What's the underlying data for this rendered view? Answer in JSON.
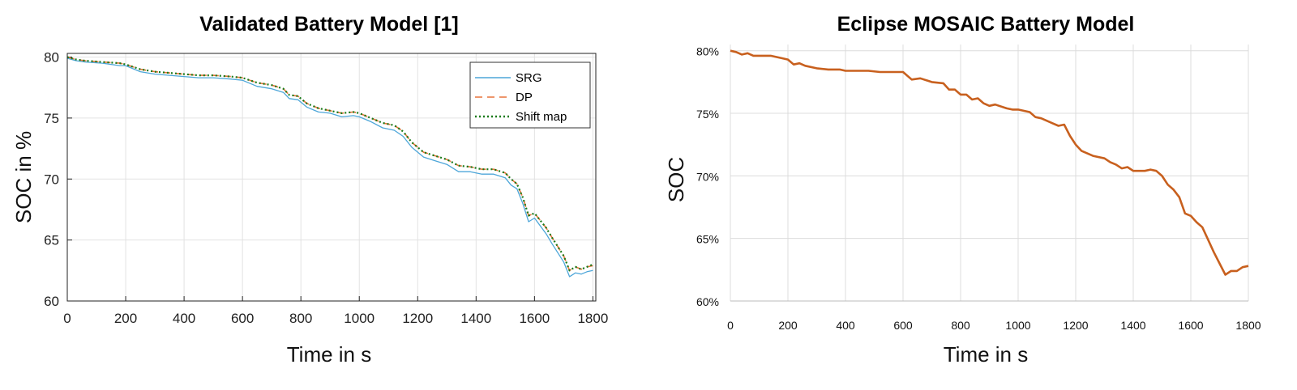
{
  "chart_data": [
    {
      "type": "line",
      "title": "Validated Battery Model [1]",
      "xlabel": "Time in s",
      "ylabel": "SOC in %",
      "xlim": [
        0,
        1810
      ],
      "ylim": [
        60,
        80.3
      ],
      "xticks": [
        0,
        200,
        400,
        600,
        800,
        1000,
        1200,
        1400,
        1600,
        1800
      ],
      "xtick_labels": [
        "0",
        "200",
        "400",
        "600",
        "800",
        "1000",
        "1200",
        "1400",
        "1600",
        "1800"
      ],
      "yticks": [
        60,
        65,
        70,
        75,
        80
      ],
      "ytick_labels": [
        "60",
        "65",
        "70",
        "75",
        "80"
      ],
      "grid": true,
      "legend_position": "top-right",
      "series": [
        {
          "name": "SRG",
          "color": "#4da6d9",
          "style": "solid",
          "x": [
            0,
            30,
            60,
            120,
            180,
            200,
            250,
            300,
            350,
            400,
            450,
            500,
            560,
            600,
            650,
            700,
            740,
            760,
            790,
            820,
            860,
            900,
            940,
            980,
            1000,
            1040,
            1080,
            1120,
            1150,
            1180,
            1220,
            1260,
            1300,
            1340,
            1380,
            1420,
            1460,
            1500,
            1520,
            1540,
            1560,
            1580,
            1600,
            1640,
            1660,
            1700,
            1720,
            1740,
            1760,
            1780,
            1800
          ],
          "y": [
            79.9,
            79.7,
            79.6,
            79.5,
            79.3,
            79.3,
            78.8,
            78.6,
            78.5,
            78.4,
            78.3,
            78.3,
            78.2,
            78.1,
            77.6,
            77.4,
            77.1,
            76.6,
            76.5,
            75.9,
            75.5,
            75.4,
            75.1,
            75.2,
            75.1,
            74.7,
            74.2,
            74.0,
            73.5,
            72.6,
            71.8,
            71.5,
            71.2,
            70.6,
            70.6,
            70.4,
            70.4,
            70.1,
            69.5,
            69.2,
            68.0,
            66.5,
            66.8,
            65.5,
            64.7,
            63.2,
            62.0,
            62.3,
            62.2,
            62.4,
            62.5
          ]
        },
        {
          "name": "DP",
          "color": "#e8743b",
          "style": "dashed",
          "x": [
            0,
            30,
            60,
            120,
            180,
            200,
            250,
            300,
            350,
            400,
            450,
            500,
            560,
            600,
            650,
            700,
            740,
            760,
            790,
            820,
            860,
            900,
            940,
            980,
            1000,
            1040,
            1080,
            1120,
            1150,
            1180,
            1220,
            1260,
            1300,
            1340,
            1380,
            1420,
            1460,
            1500,
            1520,
            1540,
            1560,
            1580,
            1600,
            1640,
            1660,
            1700,
            1720,
            1740,
            1760,
            1780,
            1800
          ],
          "y": [
            80.0,
            79.8,
            79.7,
            79.6,
            79.5,
            79.4,
            79.0,
            78.8,
            78.7,
            78.6,
            78.5,
            78.5,
            78.4,
            78.3,
            77.9,
            77.7,
            77.4,
            76.9,
            76.8,
            76.2,
            75.8,
            75.6,
            75.4,
            75.5,
            75.4,
            75.0,
            74.6,
            74.4,
            73.9,
            73.0,
            72.2,
            71.9,
            71.6,
            71.1,
            71.0,
            70.8,
            70.8,
            70.5,
            70.0,
            69.6,
            68.5,
            67.0,
            67.2,
            66.0,
            65.2,
            63.7,
            62.5,
            62.8,
            62.6,
            62.8,
            62.9
          ]
        },
        {
          "name": "Shift map",
          "color": "#1a7a1a",
          "style": "dotted",
          "x": [
            0,
            30,
            60,
            120,
            180,
            200,
            250,
            300,
            350,
            400,
            450,
            500,
            560,
            600,
            650,
            700,
            740,
            760,
            790,
            820,
            860,
            900,
            940,
            980,
            1000,
            1040,
            1080,
            1120,
            1150,
            1180,
            1220,
            1260,
            1300,
            1340,
            1380,
            1420,
            1460,
            1500,
            1520,
            1540,
            1560,
            1580,
            1600,
            1640,
            1660,
            1700,
            1720,
            1740,
            1760,
            1780,
            1800
          ],
          "y": [
            80.0,
            79.8,
            79.7,
            79.6,
            79.5,
            79.4,
            79.0,
            78.8,
            78.7,
            78.6,
            78.5,
            78.5,
            78.4,
            78.3,
            77.9,
            77.7,
            77.4,
            76.9,
            76.8,
            76.2,
            75.8,
            75.6,
            75.4,
            75.5,
            75.4,
            75.0,
            74.6,
            74.4,
            73.9,
            73.0,
            72.2,
            71.9,
            71.6,
            71.1,
            71.0,
            70.8,
            70.8,
            70.5,
            70.0,
            69.6,
            68.5,
            67.0,
            67.2,
            66.0,
            65.2,
            63.7,
            62.5,
            62.8,
            62.6,
            62.8,
            63.0
          ]
        }
      ]
    },
    {
      "type": "line",
      "title": "Eclipse MOSAIC Battery Model",
      "xlabel": "Time in s",
      "ylabel": "SOC",
      "xlim": [
        0,
        1800
      ],
      "ylim": [
        60,
        80.5
      ],
      "xticks": [
        0,
        200,
        400,
        600,
        800,
        1000,
        1200,
        1400,
        1600,
        1800
      ],
      "xtick_labels": [
        "0",
        "200",
        "400",
        "600",
        "800",
        "1000",
        "1200",
        "1400",
        "1600",
        "1800"
      ],
      "yticks": [
        60,
        65,
        70,
        75,
        80
      ],
      "ytick_labels": [
        "60%",
        "65%",
        "70%",
        "75%",
        "80%"
      ],
      "grid": true,
      "series": [
        {
          "color": "#c8601e",
          "style": "solid",
          "x": [
            0,
            20,
            40,
            60,
            80,
            100,
            140,
            180,
            200,
            220,
            240,
            260,
            300,
            340,
            380,
            400,
            440,
            480,
            520,
            560,
            600,
            630,
            660,
            700,
            740,
            760,
            780,
            800,
            820,
            840,
            860,
            880,
            900,
            920,
            960,
            980,
            1000,
            1040,
            1060,
            1080,
            1100,
            1120,
            1140,
            1160,
            1180,
            1200,
            1220,
            1260,
            1300,
            1320,
            1340,
            1360,
            1380,
            1400,
            1440,
            1460,
            1480,
            1500,
            1520,
            1540,
            1560,
            1580,
            1600,
            1620,
            1640,
            1660,
            1680,
            1700,
            1720,
            1740,
            1760,
            1780,
            1800
          ],
          "y": [
            80.0,
            79.9,
            79.7,
            79.8,
            79.6,
            79.6,
            79.6,
            79.4,
            79.3,
            78.9,
            79.0,
            78.8,
            78.6,
            78.5,
            78.5,
            78.4,
            78.4,
            78.4,
            78.3,
            78.3,
            78.3,
            77.7,
            77.8,
            77.5,
            77.4,
            76.9,
            76.9,
            76.5,
            76.5,
            76.1,
            76.2,
            75.8,
            75.6,
            75.7,
            75.4,
            75.3,
            75.3,
            75.1,
            74.7,
            74.6,
            74.4,
            74.2,
            74.0,
            74.1,
            73.2,
            72.5,
            72.0,
            71.6,
            71.4,
            71.1,
            70.9,
            70.6,
            70.7,
            70.4,
            70.4,
            70.5,
            70.4,
            70.0,
            69.3,
            68.9,
            68.3,
            67.0,
            66.8,
            66.3,
            65.9,
            64.9,
            63.9,
            63.0,
            62.1,
            62.4,
            62.4,
            62.7,
            62.8
          ]
        }
      ]
    }
  ]
}
